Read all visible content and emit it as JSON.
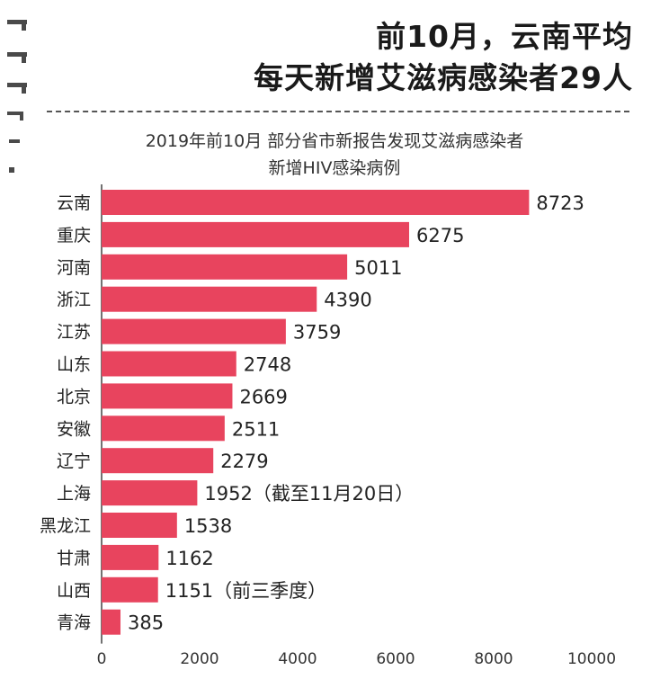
{
  "headline": {
    "line1": "前10月，云南平均",
    "line2": "每天新增艾滋病感染者29人"
  },
  "chart_data": {
    "type": "bar",
    "orientation": "horizontal",
    "title": "2019年前10月 部分省市新报告发现艾滋病感染者",
    "subtitle": "新增HIV感染病例",
    "categories": [
      "云南",
      "重庆",
      "河南",
      "浙江",
      "江苏",
      "山东",
      "北京",
      "安徽",
      "辽宁",
      "上海",
      "黑龙江",
      "甘肃",
      "山西",
      "青海"
    ],
    "values": [
      8723,
      6275,
      5011,
      4390,
      3759,
      2748,
      2669,
      2511,
      2279,
      1952,
      1538,
      1162,
      1151,
      385
    ],
    "value_labels": [
      "8723",
      "6275",
      "5011",
      "4390",
      "3759",
      "2748",
      "2669",
      "2511",
      "2279",
      "1952（截至11月20日）",
      "1538",
      "1162",
      "1151（前三季度）",
      "385"
    ],
    "x_ticks": [
      "0",
      "2000",
      "4000",
      "6000",
      "8000",
      "10000"
    ],
    "xlim": [
      0,
      10000
    ],
    "bar_color": "#e8445e",
    "grid": false
  }
}
